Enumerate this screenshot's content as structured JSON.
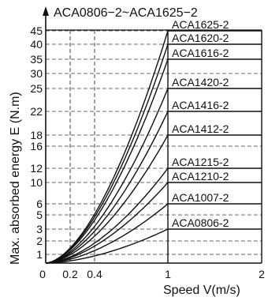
{
  "chart_data": {
    "type": "line",
    "title": "ACA0806−2~ACA1625−2",
    "xlabel": "Speed V(m/s)",
    "ylabel": "Max. absorbed energy E  (N.m)",
    "x_ticks": [
      {
        "value": 0,
        "label": "0"
      },
      {
        "value": 0.2,
        "label": "0.2"
      },
      {
        "value": 0.4,
        "label": "0.4"
      },
      {
        "value": 1,
        "label": "1"
      },
      {
        "value": 2,
        "label": "2"
      }
    ],
    "y_ticks": [
      {
        "value": 1,
        "label": "1"
      },
      {
        "value": 2,
        "label": "2"
      },
      {
        "value": 3,
        "label": "3"
      },
      {
        "value": 5,
        "label": "5"
      },
      {
        "value": 6,
        "label": "6"
      },
      {
        "value": 10,
        "label": "10"
      },
      {
        "value": 12,
        "label": "12"
      },
      {
        "value": 16,
        "label": "16"
      },
      {
        "value": 18,
        "label": "18"
      },
      {
        "value": 22,
        "label": "22"
      },
      {
        "value": 25,
        "label": "25"
      },
      {
        "value": 30,
        "label": "30"
      },
      {
        "value": 35,
        "label": "35"
      },
      {
        "value": 40,
        "label": "40"
      },
      {
        "value": 45,
        "label": "45"
      }
    ],
    "x_scale": "piecewise: 0-1 over first segment, 1-2 over second",
    "y_scale": "nonlinear (labelled tick positions)",
    "grid": "dashed horizontal and vertical lines at ticks",
    "series": [
      {
        "name": "ACA0806-2",
        "max_energy": 3
      },
      {
        "name": "ACA1007-2",
        "max_energy": 6
      },
      {
        "name": "ACA1210-2",
        "max_energy": 10
      },
      {
        "name": "ACA1215-2",
        "max_energy": 12
      },
      {
        "name": "ACA1412-2",
        "max_energy": 18
      },
      {
        "name": "ACA1416-2",
        "max_energy": 22
      },
      {
        "name": "ACA1420-2",
        "max_energy": 25
      },
      {
        "name": "ACA1616-2",
        "max_energy": 35
      },
      {
        "name": "ACA1620-2",
        "max_energy": 40
      },
      {
        "name": "ACA1625-2",
        "max_energy": 45
      }
    ],
    "curve_model": "E rises roughly as V squared from 0 to max_energy at V = 1 m/s, then stays flat to V = 2 m/s"
  }
}
